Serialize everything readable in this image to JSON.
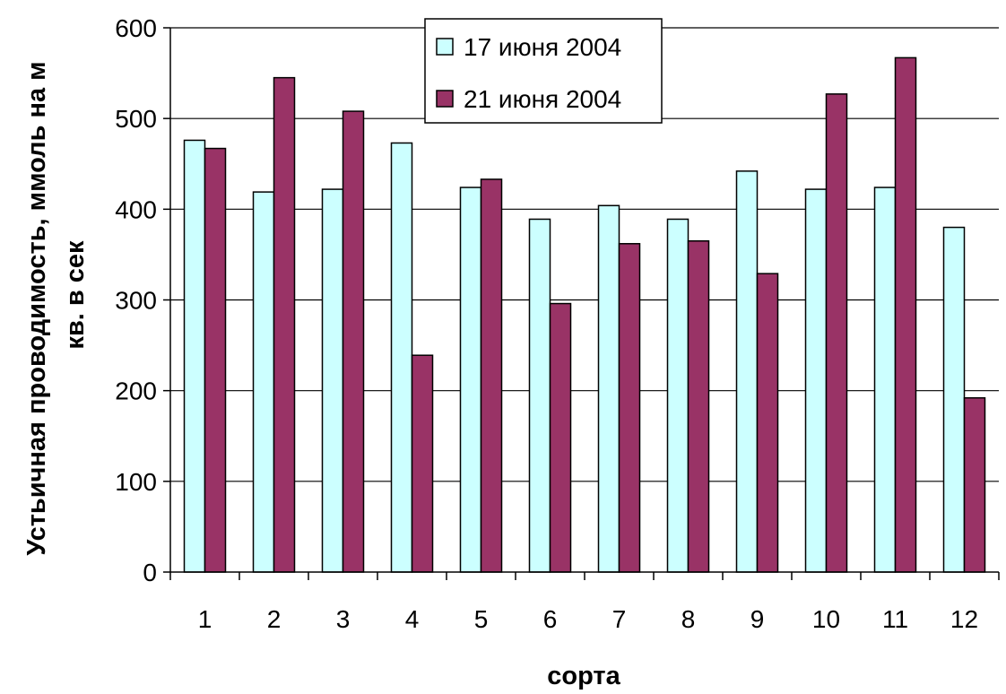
{
  "chart_data": {
    "type": "bar",
    "categories": [
      "1",
      "2",
      "3",
      "4",
      "5",
      "6",
      "7",
      "8",
      "9",
      "10",
      "11",
      "12"
    ],
    "series": [
      {
        "name": "17 июня 2004",
        "color": "#ccffff",
        "values": [
          476,
          419,
          422,
          473,
          424,
          389,
          404,
          389,
          442,
          422,
          424,
          380
        ]
      },
      {
        "name": "21 июня 2004",
        "color": "#993366",
        "values": [
          467,
          545,
          508,
          239,
          433,
          296,
          362,
          365,
          329,
          527,
          567,
          192
        ]
      }
    ],
    "xlabel": "сорта",
    "ylabel_line1": "Устьичная проводимость, ммоль на м",
    "ylabel_line2": "кв. в сек",
    "ylim": [
      0,
      600
    ],
    "yticks": [
      0,
      100,
      200,
      300,
      400,
      500,
      600
    ],
    "grid": true,
    "legend_position": "top-center"
  }
}
